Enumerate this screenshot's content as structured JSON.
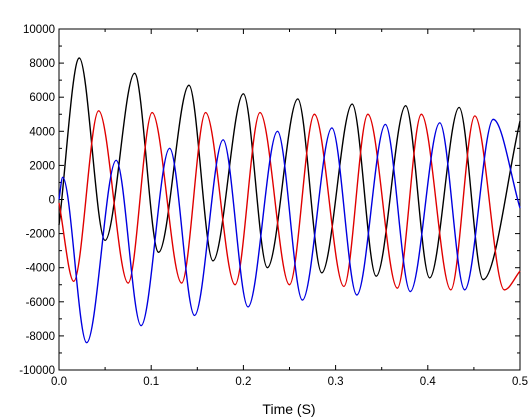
{
  "chart_data": {
    "type": "line",
    "title": "",
    "xlabel": "Time (S)",
    "ylabel": "",
    "xlim": [
      0,
      0.5
    ],
    "ylim": [
      -10000,
      10000
    ],
    "x_ticks": [
      0.0,
      0.1,
      0.2,
      0.3,
      0.4,
      0.5
    ],
    "x_tick_labels": [
      "0.0",
      "0.1",
      "0.2",
      "0.3",
      "0.4",
      "0.5"
    ],
    "y_ticks": [
      10000,
      8000,
      6000,
      4000,
      2000,
      0,
      -2000,
      -4000,
      -6000,
      -8000,
      -10000
    ],
    "y_tick_labels": [
      "10000",
      "8000",
      "6000",
      "4000",
      "2000",
      "0",
      "-2000",
      "-4000",
      "-6000",
      "-8000",
      "-10000"
    ],
    "grid": false,
    "legend": "none",
    "series": [
      {
        "color": "#000000",
        "x": [
          0.0,
          0.022,
          0.05,
          0.082,
          0.108,
          0.141,
          0.167,
          0.2,
          0.226,
          0.259,
          0.285,
          0.318,
          0.344,
          0.376,
          0.402,
          0.434,
          0.46,
          0.5
        ],
        "y": [
          -1500,
          8300,
          -2400,
          7400,
          -3100,
          6700,
          -3600,
          6200,
          -4000,
          5900,
          -4300,
          5600,
          -4500,
          5500,
          -4600,
          5400,
          -4700,
          4600
        ]
      },
      {
        "color": "#e00000",
        "x": [
          0.0,
          0.016,
          0.043,
          0.075,
          0.101,
          0.133,
          0.159,
          0.191,
          0.218,
          0.25,
          0.277,
          0.309,
          0.335,
          0.367,
          0.393,
          0.425,
          0.451,
          0.483,
          0.5
        ],
        "y": [
          -200,
          -4800,
          5200,
          -4900,
          5100,
          -4900,
          5100,
          -5000,
          5100,
          -5000,
          5000,
          -5100,
          5000,
          -5200,
          5000,
          -5300,
          4900,
          -5300,
          -4200
        ]
      },
      {
        "color": "#0000e0",
        "x": [
          0.0,
          0.004,
          0.03,
          0.062,
          0.089,
          0.12,
          0.147,
          0.178,
          0.205,
          0.237,
          0.264,
          0.296,
          0.323,
          0.354,
          0.381,
          0.413,
          0.44,
          0.471,
          0.5
        ],
        "y": [
          0,
          1300,
          -8400,
          2300,
          -7400,
          3000,
          -6800,
          3500,
          -6300,
          4000,
          -5900,
          4200,
          -5600,
          4400,
          -5400,
          4500,
          -5300,
          4700,
          -500
        ]
      }
    ]
  }
}
